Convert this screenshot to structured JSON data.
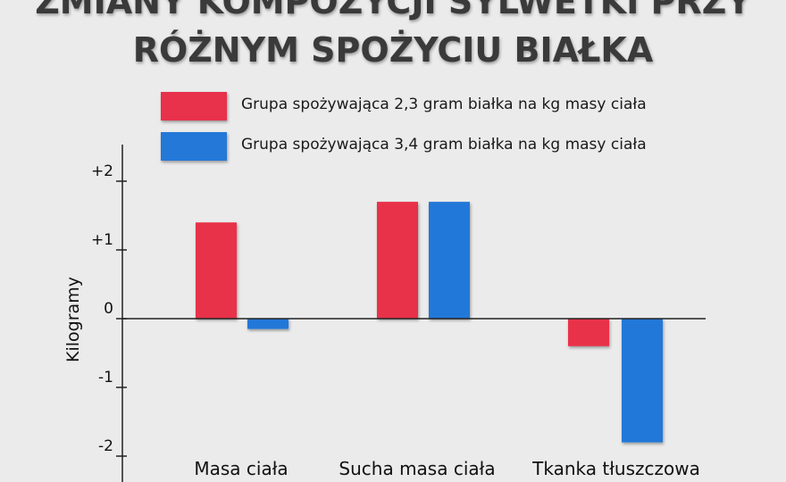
{
  "title_lines": [
    "ZMIANY KOMPOZYCJI SYLWETKI PRZY",
    "RÓŻNYM SPOŻYCIU BIAŁKA"
  ],
  "colors": {
    "series1": "#e8314a",
    "series2": "#2478d8"
  },
  "chart_data": {
    "type": "bar",
    "categories": [
      "Masa ciała",
      "Sucha masa ciała",
      "Tkanka tłuszczowa"
    ],
    "series": [
      {
        "name": "Grupa spożywająca 2,3 gram białka na kg masy ciała",
        "values": [
          1.4,
          1.7,
          -0.4
        ]
      },
      {
        "name": "Grupa spożywająca 3,4 gram białka na kg masy ciała",
        "values": [
          -0.15,
          1.7,
          -1.8
        ]
      }
    ],
    "ylabel": "Kilogramy",
    "xlabel": "",
    "ylim": [
      -2.4,
      2.5
    ],
    "yticks": [
      2,
      1,
      0,
      -1,
      -2
    ],
    "ytick_labels": [
      "+2",
      "+1",
      "0",
      "-1",
      "-2"
    ],
    "legend": "top",
    "grid": false
  }
}
